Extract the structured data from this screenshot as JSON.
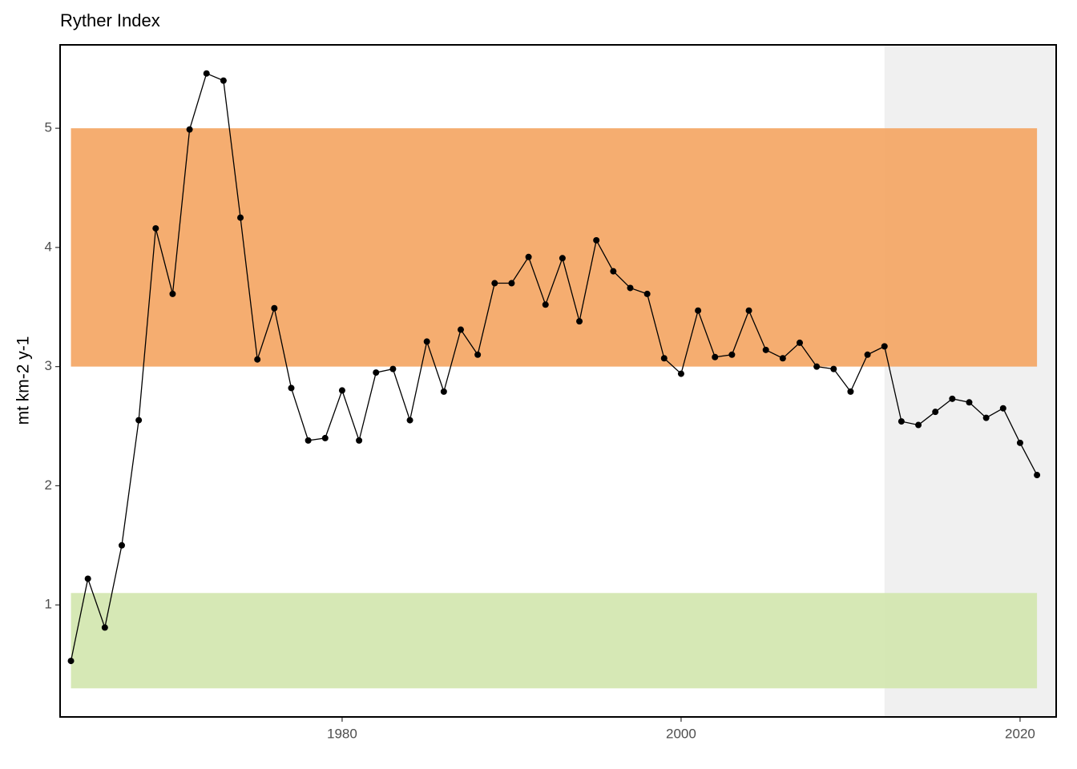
{
  "chart_data": {
    "type": "line",
    "title": "Ryther Index",
    "y_label": "mt km-2 y-1",
    "x": [
      1964,
      1965,
      1966,
      1967,
      1968,
      1969,
      1970,
      1971,
      1972,
      1973,
      1974,
      1975,
      1976,
      1977,
      1978,
      1979,
      1980,
      1981,
      1982,
      1983,
      1984,
      1985,
      1986,
      1987,
      1988,
      1989,
      1990,
      1991,
      1992,
      1993,
      1994,
      1995,
      1996,
      1997,
      1998,
      1999,
      2000,
      2001,
      2002,
      2003,
      2004,
      2005,
      2006,
      2007,
      2008,
      2009,
      2010,
      2011,
      2012,
      2013,
      2014,
      2015,
      2016,
      2017,
      2018,
      2019,
      2020,
      2021
    ],
    "series": [
      {
        "color": "#000000",
        "values": [
          0.53,
          1.22,
          0.81,
          1.5,
          2.55,
          4.16,
          3.61,
          4.99,
          5.46,
          5.4,
          4.25,
          3.06,
          3.49,
          2.82,
          2.38,
          2.4,
          2.8,
          2.38,
          2.95,
          2.98,
          2.55,
          3.21,
          2.79,
          3.31,
          3.1,
          3.7,
          3.7,
          3.92,
          3.52,
          3.91,
          3.38,
          4.06,
          3.8,
          3.66,
          3.61,
          3.07,
          2.94,
          3.47,
          3.08,
          3.1,
          3.47,
          3.14,
          3.07,
          3.2,
          3.0,
          2.98,
          2.79,
          3.1,
          3.17,
          2.54,
          2.51,
          2.62,
          2.73,
          2.7,
          2.57,
          2.65,
          2.36,
          2.09
        ]
      }
    ],
    "bands": [
      {
        "y": [
          3,
          5
        ],
        "x": [
          1964,
          2021
        ],
        "color": "#f4a460"
      },
      {
        "y": [
          0.3,
          1.1
        ],
        "x": [
          1964,
          2021
        ],
        "color": "#d1e5ad"
      }
    ],
    "shade": {
      "x": [
        2012,
        2022.13
      ],
      "color": "#d9d9d9"
    },
    "xlim": [
      1963.36,
      2022.13
    ],
    "ylim": [
      0.06,
      5.7
    ],
    "xticks": [
      1980,
      2000,
      2020
    ],
    "yticks": [
      1,
      2,
      3,
      4,
      5
    ],
    "grid": false
  }
}
